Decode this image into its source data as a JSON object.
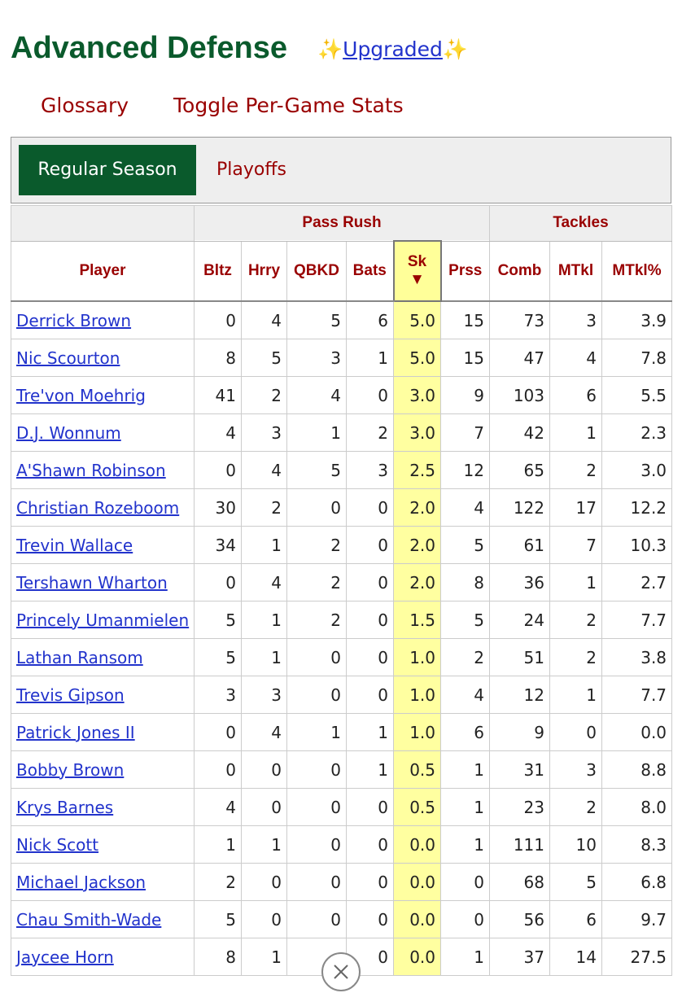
{
  "header": {
    "title": "Advanced Defense",
    "badge_left": "✨",
    "badge_link": "Upgraded",
    "badge_right": "✨"
  },
  "links": [
    "Glossary",
    "Toggle Per-Game Stats"
  ],
  "tabs": {
    "active": "Regular Season",
    "other": "Playoffs"
  },
  "table": {
    "groups": [
      {
        "label": "Pass Rush",
        "span": 6
      },
      {
        "label": "Tackles",
        "span": 3
      }
    ],
    "columns": [
      "Player",
      "Bltz",
      "Hrry",
      "QBKD",
      "Bats",
      "Sk",
      "Prss",
      "Comb",
      "MTkl",
      "MTkl%"
    ],
    "sort_indicator": "▼",
    "rows": [
      [
        "Derrick Brown",
        "0",
        "4",
        "5",
        "6",
        "5.0",
        "15",
        "73",
        "3",
        "3.9"
      ],
      [
        "Nic Scourton",
        "8",
        "5",
        "3",
        "1",
        "5.0",
        "15",
        "47",
        "4",
        "7.8"
      ],
      [
        "Tre'von Moehrig",
        "41",
        "2",
        "4",
        "0",
        "3.0",
        "9",
        "103",
        "6",
        "5.5"
      ],
      [
        "D.J. Wonnum",
        "4",
        "3",
        "1",
        "2",
        "3.0",
        "7",
        "42",
        "1",
        "2.3"
      ],
      [
        "A'Shawn Robinson",
        "0",
        "4",
        "5",
        "3",
        "2.5",
        "12",
        "65",
        "2",
        "3.0"
      ],
      [
        "Christian Rozeboom",
        "30",
        "2",
        "0",
        "0",
        "2.0",
        "4",
        "122",
        "17",
        "12.2"
      ],
      [
        "Trevin Wallace",
        "34",
        "1",
        "2",
        "0",
        "2.0",
        "5",
        "61",
        "7",
        "10.3"
      ],
      [
        "Tershawn Wharton",
        "0",
        "4",
        "2",
        "0",
        "2.0",
        "8",
        "36",
        "1",
        "2.7"
      ],
      [
        "Princely Umanmielen",
        "5",
        "1",
        "2",
        "0",
        "1.5",
        "5",
        "24",
        "2",
        "7.7"
      ],
      [
        "Lathan Ransom",
        "5",
        "1",
        "0",
        "0",
        "1.0",
        "2",
        "51",
        "2",
        "3.8"
      ],
      [
        "Trevis Gipson",
        "3",
        "3",
        "0",
        "0",
        "1.0",
        "4",
        "12",
        "1",
        "7.7"
      ],
      [
        "Patrick Jones II",
        "0",
        "4",
        "1",
        "1",
        "1.0",
        "6",
        "9",
        "0",
        "0.0"
      ],
      [
        "Bobby Brown",
        "0",
        "0",
        "0",
        "1",
        "0.5",
        "1",
        "31",
        "3",
        "8.8"
      ],
      [
        "Krys Barnes",
        "4",
        "0",
        "0",
        "0",
        "0.5",
        "1",
        "23",
        "2",
        "8.0"
      ],
      [
        "Nick Scott",
        "1",
        "1",
        "0",
        "0",
        "0.0",
        "1",
        "111",
        "10",
        "8.3"
      ],
      [
        "Michael Jackson",
        "2",
        "0",
        "0",
        "0",
        "0.0",
        "0",
        "68",
        "5",
        "6.8"
      ],
      [
        "Chau Smith-Wade",
        "5",
        "0",
        "0",
        "0",
        "0.0",
        "0",
        "56",
        "6",
        "9.7"
      ],
      [
        "Jaycee Horn",
        "8",
        "1",
        null,
        "0",
        "0.0",
        "1",
        "37",
        "14",
        "27.5"
      ]
    ]
  }
}
